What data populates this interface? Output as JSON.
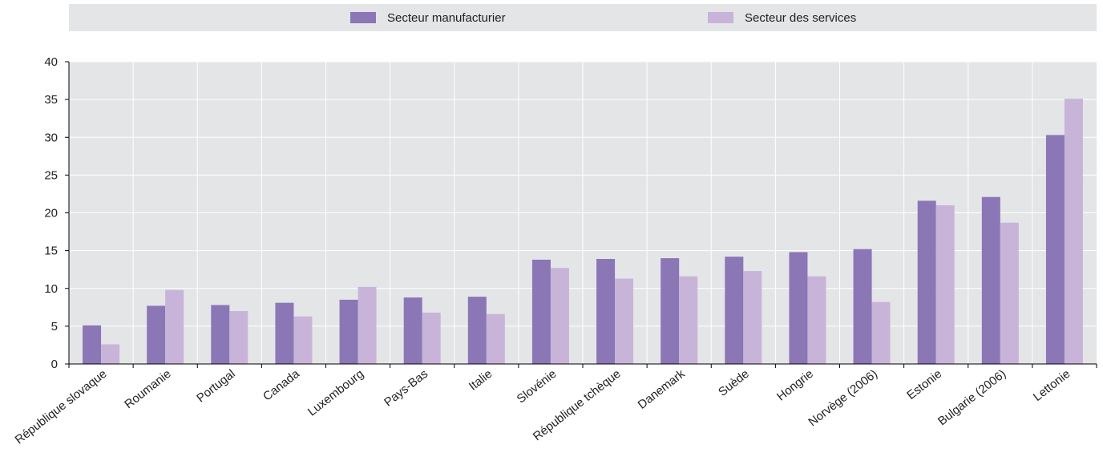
{
  "chart_data": {
    "type": "bar",
    "categories": [
      "République slovaque",
      "Roumanie",
      "Portugal",
      "Canada",
      "Luxembourg",
      "Pays-Bas",
      "Italie",
      "Slovénie",
      "République tchèque",
      "Danemark",
      "Suède",
      "Hongrie",
      "Norvège (2006)",
      "Estonie",
      "Bulgarie (2006)",
      "Lettonie"
    ],
    "series": [
      {
        "name": "Secteur manufacturier",
        "color": "#8b76b6",
        "values": [
          5.1,
          7.7,
          7.8,
          8.1,
          8.5,
          8.8,
          8.9,
          13.8,
          13.9,
          14.0,
          14.2,
          14.8,
          15.2,
          21.6,
          22.1,
          30.3
        ]
      },
      {
        "name": "Secteur des services",
        "color": "#c8b4d9",
        "values": [
          2.6,
          9.8,
          7.0,
          6.3,
          10.2,
          6.8,
          6.6,
          12.7,
          11.3,
          11.6,
          12.3,
          11.6,
          8.2,
          21.0,
          18.7,
          35.1
        ]
      }
    ],
    "yticks": [
      0,
      5,
      10,
      15,
      20,
      25,
      30,
      35,
      40
    ],
    "ylim": [
      0,
      40
    ],
    "grid": true,
    "legend_position": "top"
  },
  "colors": {
    "plot_background": "#e4e5e7",
    "grid": "#ffffff",
    "axis": "#000000"
  }
}
